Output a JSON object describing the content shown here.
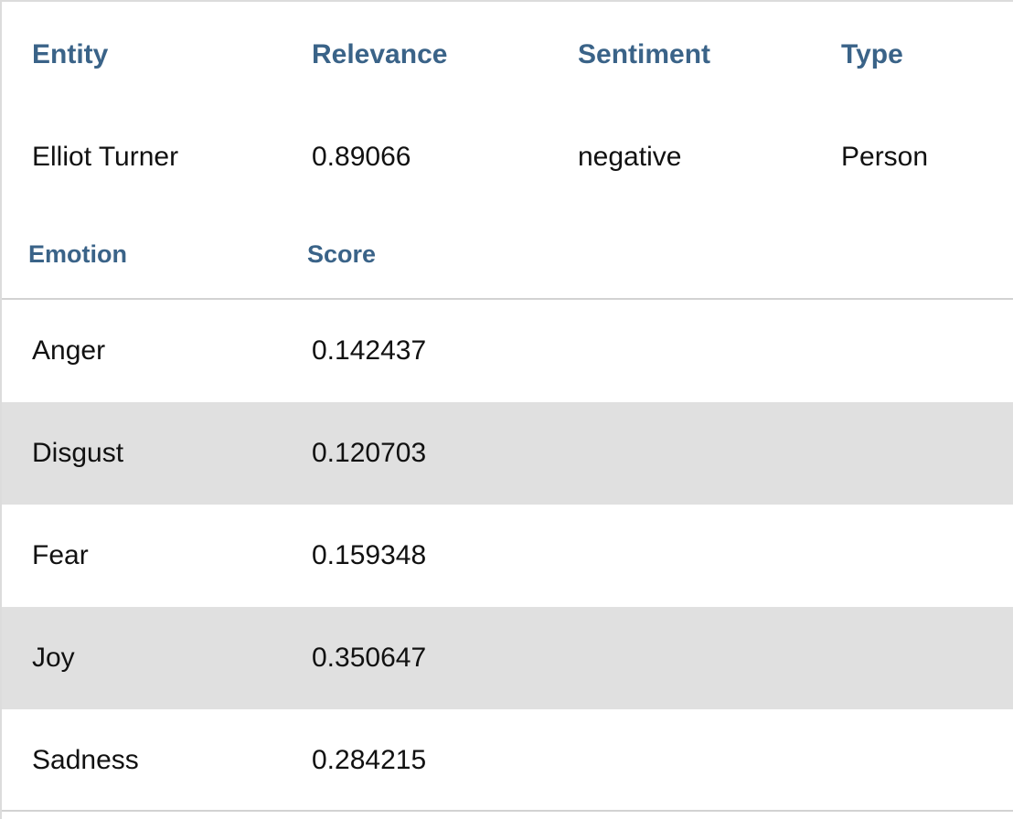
{
  "entity_table": {
    "headers": [
      "Entity",
      "Relevance",
      "Sentiment",
      "Type"
    ],
    "row": {
      "entity": "Elliot Turner",
      "relevance": "0.89066",
      "sentiment": "negative",
      "type": "Person"
    }
  },
  "emotion_table": {
    "headers": [
      "Emotion",
      "Score"
    ],
    "rows": [
      {
        "emotion": "Anger",
        "score": "0.142437"
      },
      {
        "emotion": "Disgust",
        "score": "0.120703"
      },
      {
        "emotion": "Fear",
        "score": "0.159348"
      },
      {
        "emotion": "Joy",
        "score": "0.350647"
      },
      {
        "emotion": "Sadness",
        "score": "0.284215"
      }
    ]
  },
  "colors": {
    "header_text": "#3a6388",
    "row_shade": "#e0e0e0",
    "border": "#d2d2d2"
  }
}
